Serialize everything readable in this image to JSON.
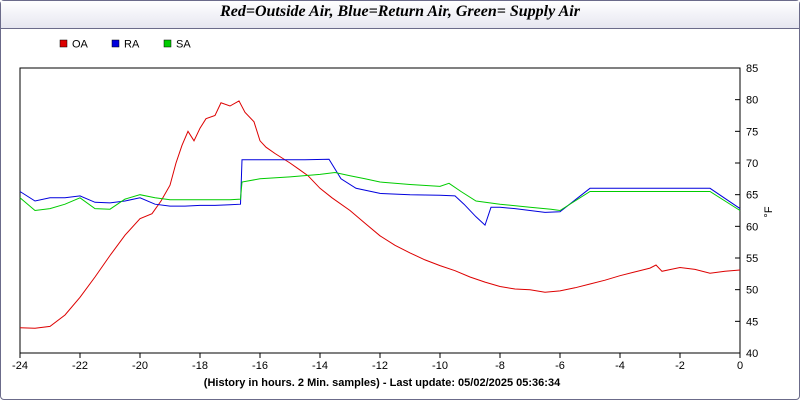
{
  "header": {
    "title": "Red=Outside Air, Blue=Return Air, Green= Supply Air"
  },
  "chart_data": {
    "type": "line",
    "title": "Red=Outside Air, Blue=Return Air, Green= Supply Air",
    "xlabel": "(History in hours. 2 Min. samples) - Last update: 05/02/2025 05:36:34",
    "ylabel": "°F",
    "xlim": [
      -24,
      0
    ],
    "ylim": [
      40,
      85
    ],
    "x_ticks": [
      -24,
      -22,
      -20,
      -18,
      -16,
      -14,
      -12,
      -10,
      -8,
      -6,
      -4,
      -2,
      0
    ],
    "y_ticks": [
      40,
      45,
      50,
      55,
      60,
      65,
      70,
      75,
      80,
      85
    ],
    "y_axis_side": "right",
    "legend_position": "top-left",
    "grid": false,
    "series": [
      {
        "name": "OA",
        "color": "#dd0000",
        "points": [
          [
            -24,
            44.0
          ],
          [
            -23.5,
            43.9
          ],
          [
            -23,
            44.2
          ],
          [
            -22.5,
            46
          ],
          [
            -22,
            48.8
          ],
          [
            -21.5,
            52
          ],
          [
            -21,
            55.4
          ],
          [
            -20.5,
            58.6
          ],
          [
            -20,
            61.2
          ],
          [
            -19.6,
            62
          ],
          [
            -19.3,
            64
          ],
          [
            -19,
            66.5
          ],
          [
            -18.8,
            70
          ],
          [
            -18.6,
            72.8
          ],
          [
            -18.4,
            75
          ],
          [
            -18.2,
            73.5
          ],
          [
            -18,
            75.5
          ],
          [
            -17.8,
            77
          ],
          [
            -17.5,
            77.5
          ],
          [
            -17.3,
            79.5
          ],
          [
            -17,
            79
          ],
          [
            -16.7,
            79.8
          ],
          [
            -16.5,
            78
          ],
          [
            -16.2,
            76.5
          ],
          [
            -16,
            73.5
          ],
          [
            -15.8,
            72.5
          ],
          [
            -15.5,
            71.5
          ],
          [
            -15,
            70
          ],
          [
            -14.7,
            69
          ],
          [
            -14.4,
            68
          ],
          [
            -14,
            66
          ],
          [
            -13.6,
            64.5
          ],
          [
            -13,
            62.5
          ],
          [
            -12.5,
            60.5
          ],
          [
            -12,
            58.5
          ],
          [
            -11.5,
            57
          ],
          [
            -11,
            55.8
          ],
          [
            -10.5,
            54.7
          ],
          [
            -10,
            53.8
          ],
          [
            -9.5,
            53
          ],
          [
            -9,
            52
          ],
          [
            -8.5,
            51.2
          ],
          [
            -8,
            50.5
          ],
          [
            -7.5,
            50.1
          ],
          [
            -7,
            50.0
          ],
          [
            -6.5,
            49.6
          ],
          [
            -6,
            49.8
          ],
          [
            -5.5,
            50.3
          ],
          [
            -5,
            50.9
          ],
          [
            -4.5,
            51.5
          ],
          [
            -4,
            52.2
          ],
          [
            -3.5,
            52.8
          ],
          [
            -3,
            53.4
          ],
          [
            -2.8,
            53.9
          ],
          [
            -2.6,
            52.9
          ],
          [
            -2.3,
            53.2
          ],
          [
            -2,
            53.5
          ],
          [
            -1.5,
            53.2
          ],
          [
            -1,
            52.6
          ],
          [
            -0.5,
            52.9
          ],
          [
            0,
            53.1
          ]
        ]
      },
      {
        "name": "RA",
        "color": "#0000dd",
        "points": [
          [
            -24,
            65.5
          ],
          [
            -23.5,
            64
          ],
          [
            -23,
            64.5
          ],
          [
            -22.5,
            64.5
          ],
          [
            -22,
            64.8
          ],
          [
            -21.5,
            63.8
          ],
          [
            -21,
            63.7
          ],
          [
            -20.5,
            64
          ],
          [
            -20,
            64.5
          ],
          [
            -19.5,
            63.5
          ],
          [
            -19,
            63.2
          ],
          [
            -18.5,
            63.2
          ],
          [
            -18,
            63.3
          ],
          [
            -17.5,
            63.3
          ],
          [
            -17,
            63.4
          ],
          [
            -16.65,
            63.5
          ],
          [
            -16.6,
            70.5
          ],
          [
            -15.5,
            70.5
          ],
          [
            -14.5,
            70.5
          ],
          [
            -13.7,
            70.6
          ],
          [
            -13.3,
            67.5
          ],
          [
            -12.8,
            66
          ],
          [
            -12,
            65.2
          ],
          [
            -11,
            65
          ],
          [
            -10,
            64.9
          ],
          [
            -9.5,
            64.8
          ],
          [
            -9.2,
            63.5
          ],
          [
            -8.8,
            61.5
          ],
          [
            -8.5,
            60.2
          ],
          [
            -8.3,
            63
          ],
          [
            -8,
            63
          ],
          [
            -7.5,
            62.8
          ],
          [
            -7,
            62.5
          ],
          [
            -6.5,
            62.2
          ],
          [
            -6,
            62.3
          ],
          [
            -5,
            66
          ],
          [
            -3,
            66
          ],
          [
            -1,
            66
          ],
          [
            0,
            62.8
          ]
        ]
      },
      {
        "name": "SA",
        "color": "#00cc00",
        "points": [
          [
            -24,
            64.5
          ],
          [
            -23.5,
            62.5
          ],
          [
            -23,
            62.8
          ],
          [
            -22.5,
            63.5
          ],
          [
            -22,
            64.5
          ],
          [
            -21.5,
            62.8
          ],
          [
            -21,
            62.7
          ],
          [
            -20.5,
            64.3
          ],
          [
            -20,
            65
          ],
          [
            -19.5,
            64.5
          ],
          [
            -19,
            64.2
          ],
          [
            -18.5,
            64.2
          ],
          [
            -18,
            64.2
          ],
          [
            -17.5,
            64.2
          ],
          [
            -17,
            64.2
          ],
          [
            -16.65,
            64.3
          ],
          [
            -16.6,
            67
          ],
          [
            -16,
            67.5
          ],
          [
            -15,
            67.8
          ],
          [
            -14,
            68.2
          ],
          [
            -13.5,
            68.5
          ],
          [
            -13,
            68
          ],
          [
            -12.5,
            67.5
          ],
          [
            -12,
            67
          ],
          [
            -11,
            66.6
          ],
          [
            -10,
            66.3
          ],
          [
            -9.7,
            66.8
          ],
          [
            -9.3,
            65.5
          ],
          [
            -8.8,
            64
          ],
          [
            -8,
            63.5
          ],
          [
            -7,
            63
          ],
          [
            -6.3,
            62.7
          ],
          [
            -6,
            62.5
          ],
          [
            -5,
            65.5
          ],
          [
            -3,
            65.5
          ],
          [
            -1,
            65.5
          ],
          [
            0,
            62.5
          ]
        ]
      }
    ]
  }
}
